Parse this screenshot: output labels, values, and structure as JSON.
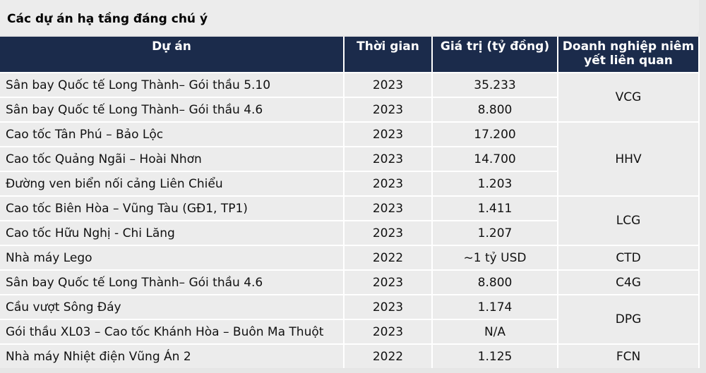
{
  "header": {
    "title": "Các dự án hạ tầng đáng chú ý"
  },
  "table": {
    "columns": [
      "Dự án",
      "Thời gian",
      "Giá trị (tỷ đồng)",
      "Doanh nghiệp niêm yết liên quan"
    ],
    "rows": [
      [
        "Sân bay Quốc tế Long Thành– Gói thầu 5.10",
        "2023",
        "35.233",
        "VCG"
      ],
      [
        "Sân bay Quốc tế Long Thành– Gói thầu 4.6",
        "2023",
        "8.800",
        null
      ],
      [
        "Cao tốc Tân Phú – Bảo Lộc",
        "2023",
        "17.200",
        "HHV"
      ],
      [
        "Cao tốc Quảng Ngãi – Hoài Nhơn",
        "2023",
        "14.700",
        null
      ],
      [
        "Đường ven biển nối cảng Liên Chiểu",
        "2023",
        "1.203",
        null
      ],
      [
        "Cao tốc Biên Hòa – Vũng Tàu (GĐ1, TP1)",
        "2023",
        "1.411",
        "LCG"
      ],
      [
        "Cao tốc Hữu Nghị - Chi Lăng",
        "2023",
        "1.207",
        null
      ],
      [
        "Nhà máy Lego",
        "2022",
        "~1 tỷ USD",
        "CTD"
      ],
      [
        "Sân bay Quốc tế Long Thành– Gói thầu 4.6",
        "2023",
        "8.800",
        "C4G"
      ],
      [
        "Cầu vượt Sông Đáy",
        "2023",
        "1.174",
        "DPG"
      ],
      [
        "Gói thầu XL03 – Cao tốc Khánh Hòa – Buôn Ma Thuột",
        "2023",
        "N/A",
        null
      ],
      [
        "Nhà máy Nhiệt điện Vũng Án 2",
        "2022",
        "1.125",
        "FCN"
      ]
    ]
  }
}
